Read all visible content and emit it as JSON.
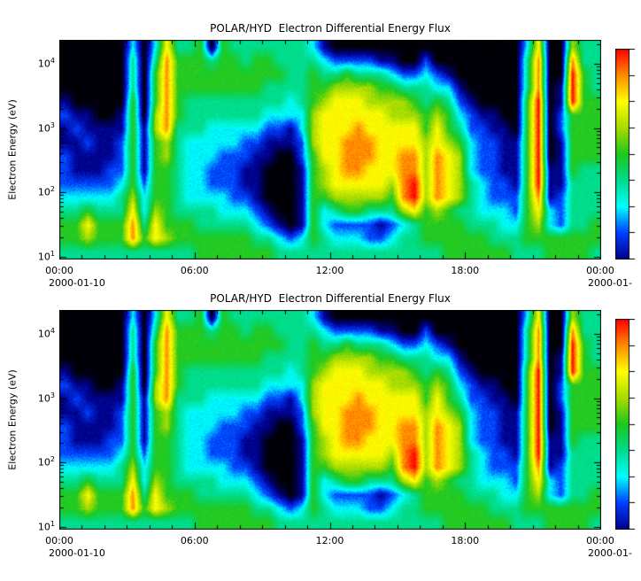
{
  "chart_data": {
    "type": "heatmap",
    "title": "POLAR/HYD  Electron Differential Energy Flux",
    "ylabel": "Electron Energy (eV)",
    "x_ticks": [
      "00:00",
      "06:00",
      "12:00",
      "18:00",
      "00:00"
    ],
    "x_tick_hours": [
      0,
      6,
      12,
      18,
      24
    ],
    "x_range_hours": [
      0,
      24
    ],
    "y_axis": {
      "scale": "log",
      "base": "10",
      "tick_exponents": [
        1,
        2,
        3,
        4
      ],
      "plot_exp_range": [
        0.97,
        4.37
      ]
    },
    "grid_lines": "off",
    "panels": [
      {
        "title": "POLAR/HYD  Electron Differential Energy Flux",
        "date_left": "2000-01-10",
        "date_right": "2000-01-"
      },
      {
        "title": "POLAR/HYD  Electron Differential Energy Flux",
        "date_left": "2000-01-10",
        "date_right": "2000-01-"
      }
    ],
    "value_scale": {
      "min": 0,
      "max": 9,
      "meaning": "0 = no flux (black), 9 = highest differential energy flux (red)"
    },
    "colormap": {
      "stops": [
        "#000000",
        "#000090",
        "#0040ff",
        "#00ffff",
        "#00dc8c",
        "#1ec81e",
        "#aadc00",
        "#ffff00",
        "#ff8c00",
        "#ff0000"
      ]
    },
    "colorbar": {
      "orientation": "vertical",
      "tick_count": 9,
      "labels_visible": false
    },
    "grid": {
      "columns_are": "time bins of 30 min from 00:00 to 24:00 UT on 2000-01-10",
      "rows_are": "16 log-spaced energy bins from ~10^1 eV (first char) to ~10^4 eV (last char)",
      "values": [
        "4554322211210000",
        "4554321112100000",
        "4675321121100000",
        "4554321111000000",
        "4554322111000000",
        "4554432221100000",
        "4887655555554443",
        "4543321111000000",
        "4776555556655543",
        "4655555668888887",
        "4554444444555554",
        "4554333334445554",
        "5544333334445555",
        "5544322333445540",
        "5543322233445555",
        "5543222233445554",
        "5543211223445544",
        "5432111123445554",
        "5421000112344554",
        "4310000012344544",
        "4200000011334444",
        "4311111223344444",
        "4555555566655543",
        "4433566777765431",
        "4324677777776420",
        "4325678887776520",
        "4325678888776420",
        "4224677887766420",
        "4214677777765410",
        "4324567777665310",
        "4436888877664200",
        "4447998877654200",
        "4555666665544320",
        "4556888877653200",
        "5555777765543100",
        "5554666654321000",
        "5544443332210000",
        "5543332222100000",
        "5443222221100000",
        "5433221111000000",
        "4432211110000000",
        "4555555555554443",
        "4567899999998887",
        "5533111000000000",
        "5522211112211000",
        "5544445555599986",
        "5544444555555544",
        "4554444555554444"
      ]
    }
  }
}
